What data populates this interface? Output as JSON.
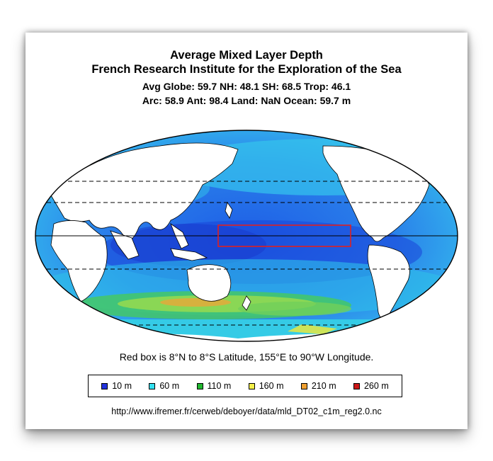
{
  "title": {
    "line1": "Average Mixed Layer Depth",
    "line2": "French Research Institute for the Exploration of the Sea",
    "stats1": "Avg Globe: 59.7  NH: 48.1  SH: 68.5  Trop: 46.1",
    "stats2": "Arc: 58.9  Ant: 98.4  Land: NaN Ocean: 59.7 m"
  },
  "note": "Red box is 8°N to 8°S Latitude, 155°E to 90°W Longitude.",
  "legend": [
    {
      "label": "10 m",
      "color": "#2233dd"
    },
    {
      "label": "60 m",
      "color": "#33e0f0"
    },
    {
      "label": "110 m",
      "color": "#22b830"
    },
    {
      "label": "160 m",
      "color": "#f4f04a"
    },
    {
      "label": "210 m",
      "color": "#f0a030"
    },
    {
      "label": "260 m",
      "color": "#cc1818"
    }
  ],
  "source": "http://www.ifremer.fr/cerweb/deboyer/data/mld_DT02_c1m_reg2.0.nc",
  "colors": {
    "ocean_deep_blue": "#2255e0",
    "ocean_cyan": "#30c8f0",
    "ocean_green": "#40c860",
    "land": "#ffffff",
    "highlight_box": "#e02020"
  }
}
